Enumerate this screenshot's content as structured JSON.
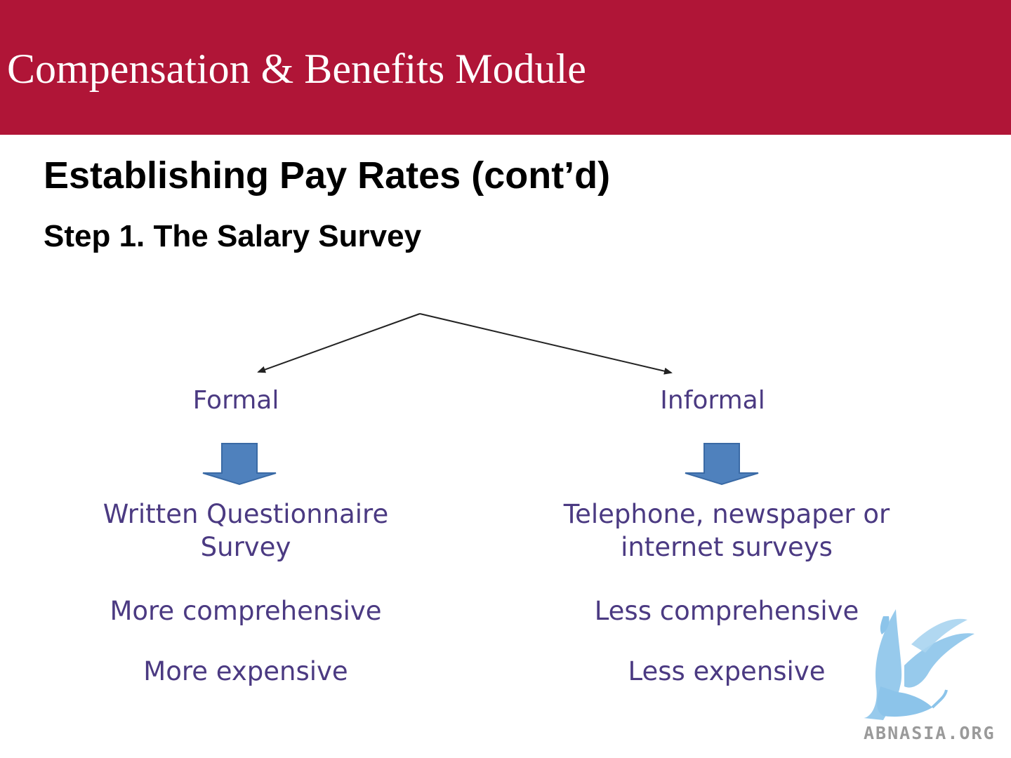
{
  "header": {
    "title": "Compensation & Benefits Module"
  },
  "slide": {
    "title": "Establishing Pay Rates (cont’d)",
    "subtitle": "Step 1. The Salary Survey"
  },
  "diagram": {
    "branches": [
      {
        "label": "Formal",
        "method_lines": [
          "Written Questionnaire",
          "Survey"
        ],
        "traits": [
          "More comprehensive",
          "More expensive"
        ]
      },
      {
        "label": "Informal",
        "method_lines": [
          "Telephone, newspaper or",
          "internet surveys"
        ],
        "traits": [
          "Less comprehensive",
          "Less expensive"
        ]
      }
    ],
    "colors": {
      "text": "#4b3a82",
      "arrow_fill": "#4f81bd",
      "arrow_stroke": "#3a6aa5",
      "line": "#222222"
    }
  },
  "watermark": {
    "text": "ABNASIA.ORG",
    "icon": "griffin-logo-icon",
    "color": "#8cc4ea"
  }
}
